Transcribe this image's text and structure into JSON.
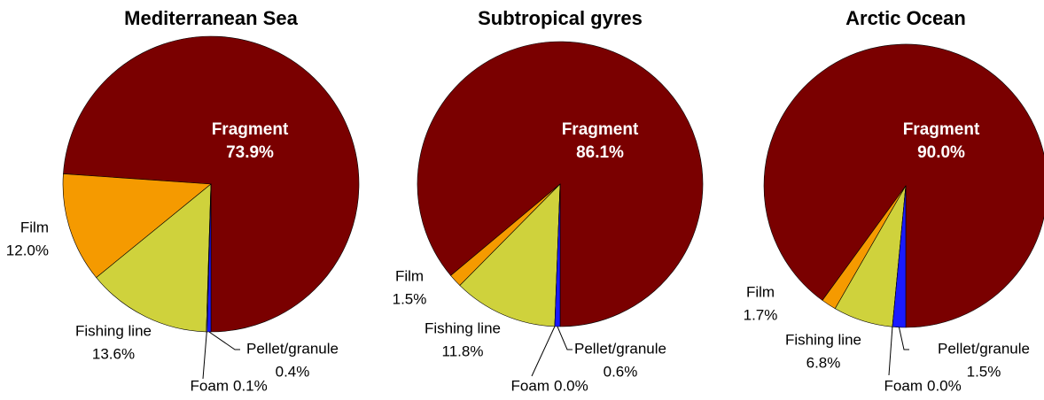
{
  "chart_data": [
    {
      "type": "pie",
      "title": "Mediterranean Sea",
      "categories": [
        "Fragment",
        "Film",
        "Fishing line",
        "Foam",
        "Pellet/granule"
      ],
      "values": [
        73.9,
        12.0,
        13.6,
        0.1,
        0.4
      ],
      "value_labels": [
        "73.9%",
        "12.0%",
        "13.6%",
        "0.1%",
        "0.4%"
      ],
      "colors": [
        "#7a0000",
        "#f59a00",
        "#cfd23c",
        "#b0b0b0",
        "#1a1aff"
      ]
    },
    {
      "type": "pie",
      "title": "Subtropical gyres",
      "categories": [
        "Fragment",
        "Film",
        "Fishing line",
        "Foam",
        "Pellet/granule"
      ],
      "values": [
        86.1,
        1.5,
        11.8,
        0.0,
        0.6
      ],
      "value_labels": [
        "86.1%",
        "1.5%",
        "11.8%",
        "0.0%",
        "0.6%"
      ],
      "colors": [
        "#7a0000",
        "#f59a00",
        "#cfd23c",
        "#b0b0b0",
        "#1a1aff"
      ]
    },
    {
      "type": "pie",
      "title": "Arctic Ocean",
      "categories": [
        "Fragment",
        "Film",
        "Fishing line",
        "Foam",
        "Pellet/granule"
      ],
      "values": [
        90.0,
        1.7,
        6.8,
        0.0,
        1.5
      ],
      "value_labels": [
        "90.0%",
        "1.7%",
        "6.8%",
        "0.0%",
        "1.5%"
      ],
      "colors": [
        "#7a0000",
        "#f59a00",
        "#cfd23c",
        "#b0b0b0",
        "#1a1aff"
      ]
    }
  ]
}
